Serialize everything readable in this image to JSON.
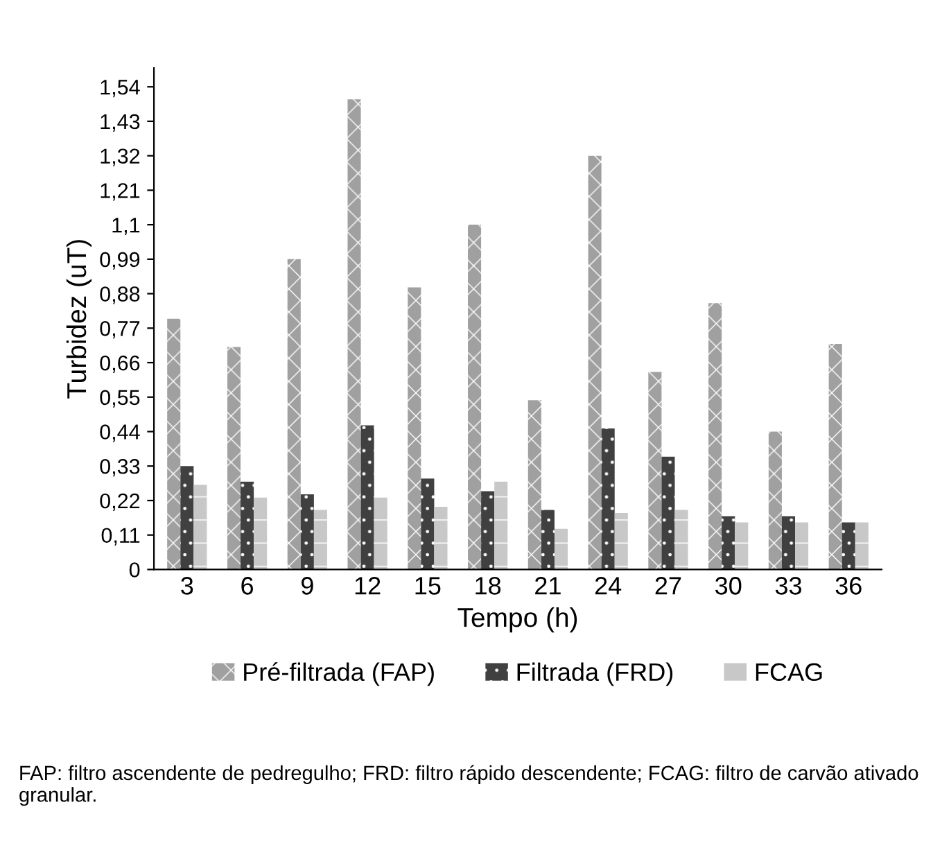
{
  "chart_data": {
    "type": "bar",
    "xlabel": "Tempo (h)",
    "ylabel": "Turbidez (uT)",
    "categories": [
      "3",
      "6",
      "9",
      "12",
      "15",
      "18",
      "21",
      "24",
      "27",
      "30",
      "33",
      "36"
    ],
    "series": [
      {
        "name": "Pré-filtrada (FAP)",
        "color": "#a0a0a0",
        "values": [
          0.8,
          0.71,
          0.99,
          1.5,
          0.9,
          1.1,
          0.54,
          1.32,
          0.63,
          0.85,
          0.44,
          0.72
        ]
      },
      {
        "name": "Filtrada (FRD)",
        "color": "#404040",
        "values": [
          0.33,
          0.28,
          0.24,
          0.46,
          0.29,
          0.25,
          0.19,
          0.45,
          0.36,
          0.17,
          0.17,
          0.15
        ]
      },
      {
        "name": "FCAG",
        "color": "#c8c8c8",
        "values": [
          0.27,
          0.23,
          0.19,
          0.23,
          0.2,
          0.28,
          0.13,
          0.18,
          0.19,
          0.15,
          0.15,
          0.15
        ]
      }
    ],
    "ylim": [
      0,
      1.6
    ],
    "yticks": [
      0,
      {
        "value": 0.11,
        "label": "0,11"
      },
      {
        "value": 0.22,
        "label": "0,22"
      },
      {
        "value": 0.33,
        "label": "0,33"
      },
      {
        "value": 0.44,
        "label": "0,44"
      },
      {
        "value": 0.55,
        "label": "0,55"
      },
      {
        "value": 0.66,
        "label": "0,66"
      },
      {
        "value": 0.77,
        "label": "0,77"
      },
      {
        "value": 0.88,
        "label": "0,88"
      },
      {
        "value": 0.99,
        "label": "0,99"
      },
      {
        "value": 1.1,
        "label": "1,1"
      },
      {
        "value": 1.21,
        "label": "1,21"
      },
      {
        "value": 1.32,
        "label": "1,32"
      },
      {
        "value": 1.43,
        "label": "1,43"
      },
      {
        "value": 1.54,
        "label": "1,54"
      }
    ],
    "grid": false,
    "legend": "bottom",
    "annotations": [
      "FAP: filtro ascendente de pedregulho; FRD: filtro rápido descendente; FCAG: filtro de carvão ativado granular."
    ]
  }
}
